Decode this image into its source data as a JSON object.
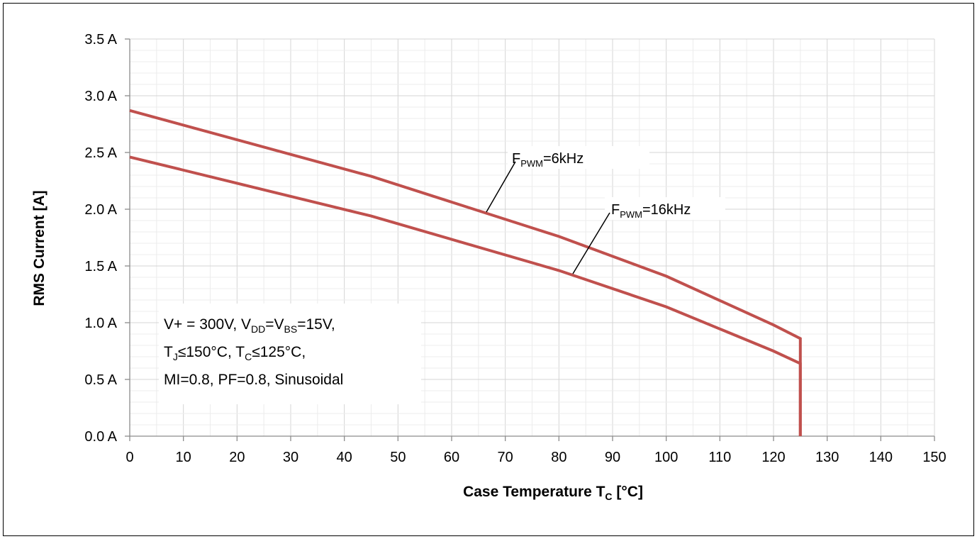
{
  "chart_data": {
    "type": "line",
    "xlabel_main": "Case Temperature T",
    "xlabel_sub": "C",
    "xlabel_tail": " [°C]",
    "ylabel": "RMS Current [A]",
    "xlim": [
      0,
      150
    ],
    "ylim": [
      0,
      3.5
    ],
    "x_ticks": [
      0,
      10,
      20,
      30,
      40,
      50,
      60,
      70,
      80,
      90,
      100,
      110,
      120,
      130,
      140,
      150
    ],
    "x_tick_labels": [
      "0",
      "10",
      "20",
      "30",
      "40",
      "50",
      "60",
      "70",
      "80",
      "90",
      "100",
      "110",
      "120",
      "130",
      "140",
      "150"
    ],
    "y_ticks": [
      0,
      0.5,
      1.0,
      1.5,
      2.0,
      2.5,
      3.0,
      3.5
    ],
    "y_tick_labels": [
      "0.0 A",
      "0.5 A",
      "1.0 A",
      "1.5 A",
      "2.0 A",
      "2.5 A",
      "3.0 A",
      "3.5 A"
    ],
    "grid": true,
    "series_color": "#c0504d",
    "series": [
      {
        "name": "F_PWM=6kHz",
        "label_main": "F",
        "label_sub": "PWM",
        "label_tail": "=6kHz",
        "x": [
          0,
          45,
          80,
          100,
          120,
          125,
          125
        ],
        "y": [
          2.87,
          2.29,
          1.76,
          1.41,
          0.98,
          0.86,
          0.0
        ]
      },
      {
        "name": "F_PWM=16kHz",
        "label_main": "F",
        "label_sub": "PWM",
        "label_tail": "=16kHz",
        "x": [
          0,
          45,
          80,
          100,
          120,
          125,
          125
        ],
        "y": [
          2.46,
          1.94,
          1.46,
          1.14,
          0.75,
          0.64,
          0.0
        ]
      }
    ],
    "conditions": {
      "line1_a": "V+ = 300V, V",
      "line1_sub1": "DD",
      "line1_b": "=V",
      "line1_sub2": "BS",
      "line1_c": "=15V,",
      "line2_a": "T",
      "line2_sub1": "J",
      "line2_b": "≤150°C, T",
      "line2_sub2": "C",
      "line2_c": "≤125°C,",
      "line3": "MI=0.8, PF=0.8, Sinusoidal"
    }
  }
}
